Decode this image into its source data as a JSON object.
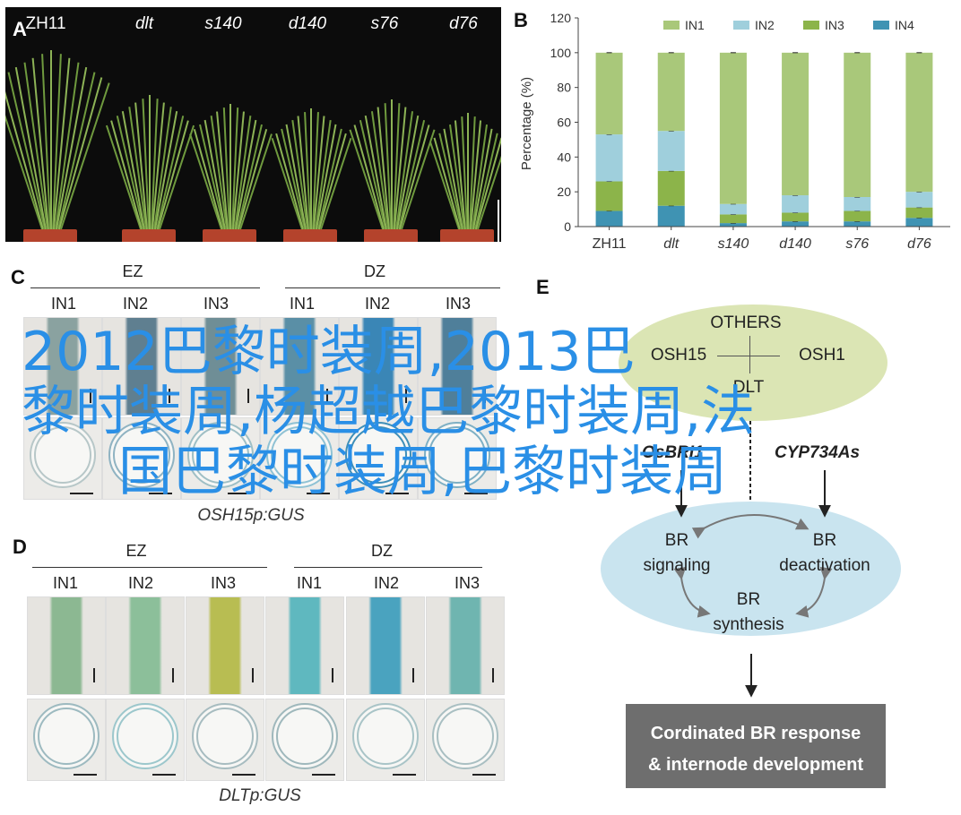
{
  "panels": {
    "a": {
      "letter": "A",
      "genotypes": [
        "ZH11",
        "dlt",
        "s140",
        "d140",
        "s76",
        "d76"
      ]
    },
    "b": {
      "letter": "B"
    },
    "c": {
      "letter": "C",
      "group_left": "EZ",
      "group_right": "DZ",
      "columns": [
        "IN1",
        "IN2",
        "IN3",
        "IN1",
        "IN2",
        "IN3"
      ],
      "caption": "OSH15p:GUS"
    },
    "d": {
      "letter": "D",
      "group_left": "EZ",
      "group_right": "DZ",
      "columns": [
        "IN1",
        "IN2",
        "IN3",
        "IN1",
        "IN2",
        "IN3"
      ],
      "caption": "DLTp:GUS"
    },
    "e": {
      "letter": "E",
      "others": "OTHERS",
      "osh15": "OSH15",
      "osh1": "OSH1",
      "dlt": "DLT",
      "osbri1": "OsBRI1",
      "cyp": "CYP734As",
      "br_signaling": [
        "BR",
        "signaling"
      ],
      "br_deactivation": [
        "BR",
        "deactivation"
      ],
      "br_synthesis": [
        "BR",
        "synthesis"
      ],
      "result": [
        "Cordinated BR response",
        "& internode development"
      ]
    }
  },
  "overlay_text": [
    "2012巴黎时装周,2013巴",
    "黎时装周,杨超越巴黎时装周,法",
    "国巴黎时装周,巴黎时装周"
  ],
  "colors": {
    "in1": "#a9c87a",
    "in2": "#9fcfdc",
    "in3": "#8cb44a",
    "in4": "#3f93b3",
    "overlay": "#2a8fe6"
  },
  "chart_data": {
    "type": "bar",
    "stacked": true,
    "categories": [
      "ZH11",
      "dlt",
      "s140",
      "d140",
      "s76",
      "d76"
    ],
    "ylabel": "Percentage (%)",
    "ylim": [
      0,
      120
    ],
    "yticks": [
      0,
      20,
      40,
      60,
      80,
      100,
      120
    ],
    "legend_position": "top",
    "series": [
      {
        "name": "IN4",
        "values": [
          9,
          12,
          2,
          3,
          3,
          5
        ]
      },
      {
        "name": "IN3",
        "values": [
          17,
          20,
          5,
          5,
          6,
          6
        ]
      },
      {
        "name": "IN2",
        "values": [
          27,
          23,
          6,
          10,
          8,
          9
        ]
      },
      {
        "name": "IN1",
        "values": [
          47,
          45,
          87,
          82,
          83,
          80
        ]
      }
    ]
  }
}
